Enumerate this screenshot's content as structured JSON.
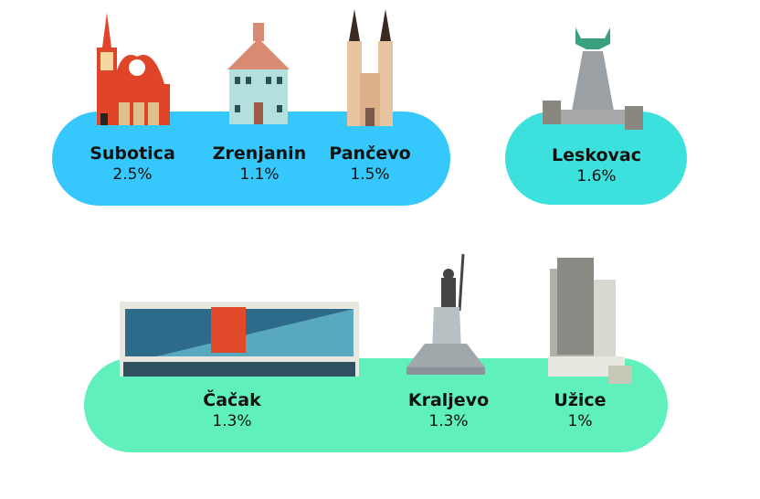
{
  "colors": {
    "top_left_pill": "#36c8fc",
    "top_right_pill": "#3ce0dc",
    "bottom_pill": "#60f0bc"
  },
  "cities": [
    {
      "name": "Subotica",
      "value": "2.5%",
      "icon": "subotica-city-hall-icon"
    },
    {
      "name": "Zrenjanin",
      "value": "1.1%",
      "icon": "zrenjanin-building-icon"
    },
    {
      "name": "Pančevo",
      "value": "1.5%",
      "icon": "pancevo-church-icon"
    },
    {
      "name": "Leskovac",
      "value": "1.6%",
      "icon": "leskovac-monument-icon"
    },
    {
      "name": "Čačak",
      "value": "1.3%",
      "icon": "cacak-building-icon"
    },
    {
      "name": "Kraljevo",
      "value": "1.3%",
      "icon": "kraljevo-monument-icon"
    },
    {
      "name": "Užice",
      "value": "1%",
      "icon": "uzice-tower-icon"
    }
  ]
}
